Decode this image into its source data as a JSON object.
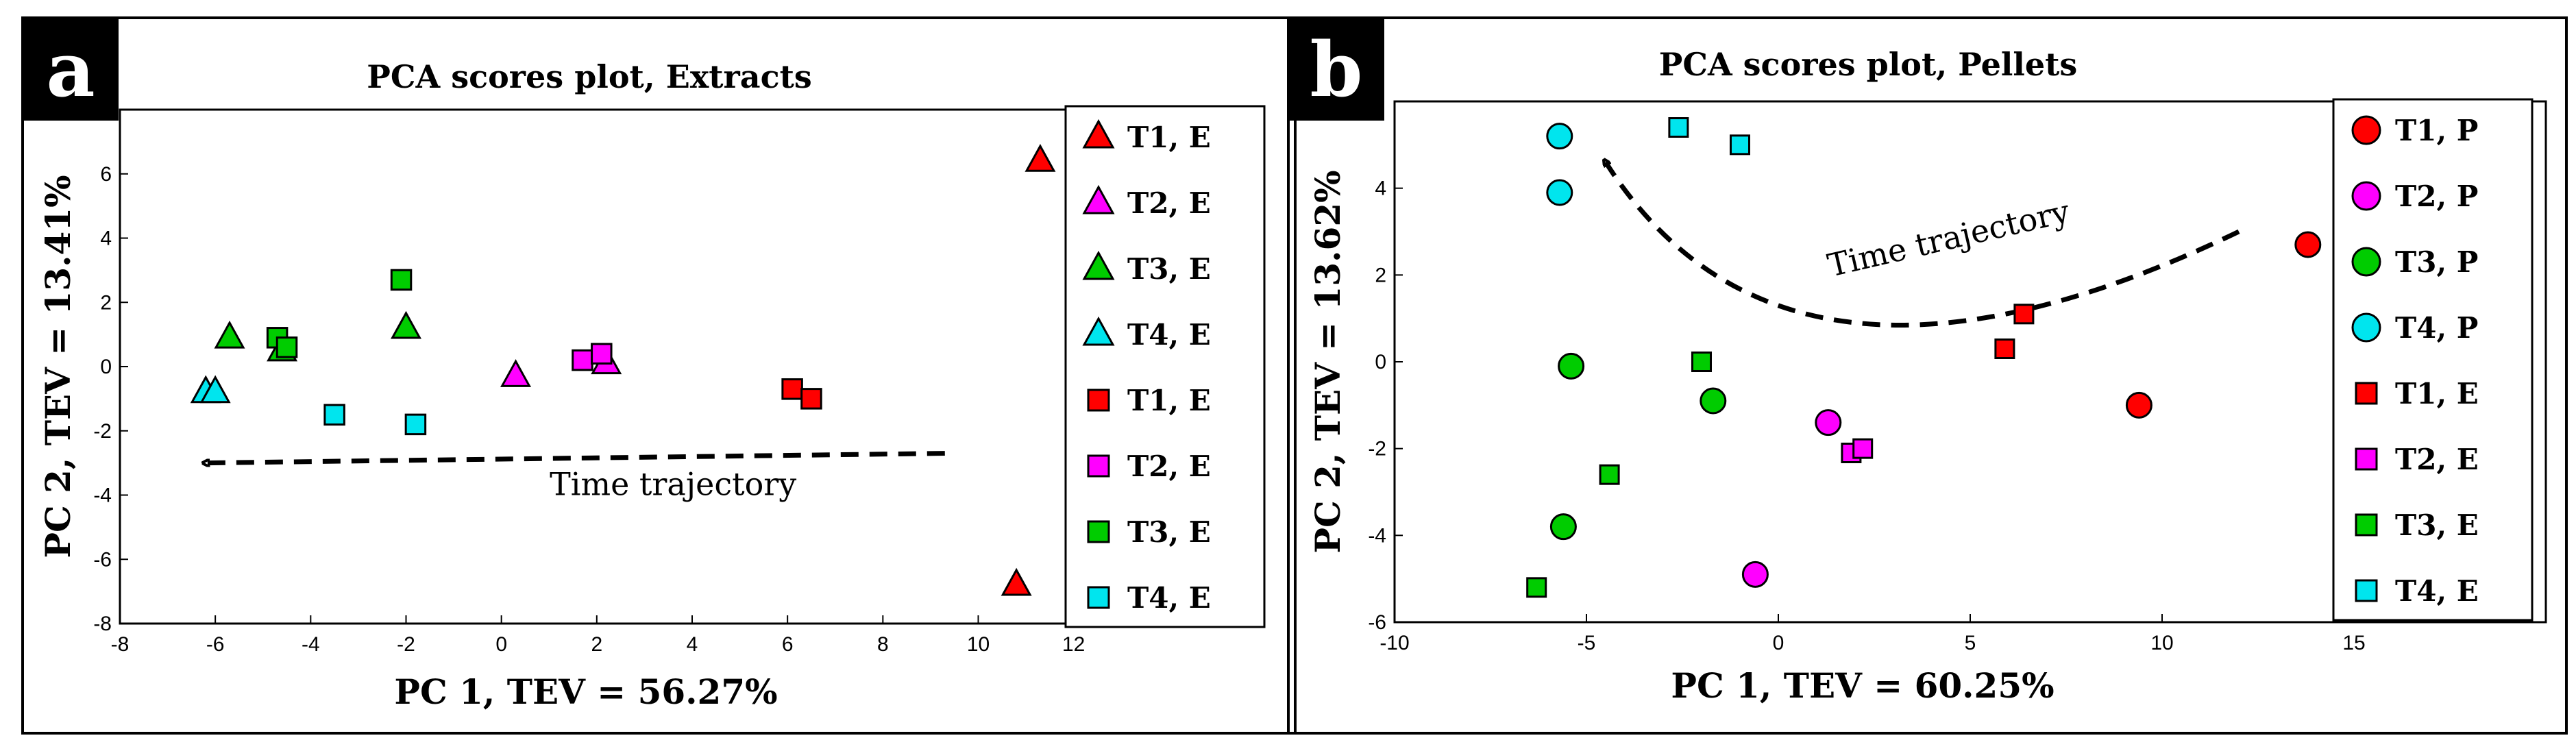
{
  "chart_data": [
    {
      "type": "scatter",
      "panel_label": "a",
      "title": "PCA scores plot, Extracts",
      "xlabel": "PC 1, TEV = 56.27%",
      "ylabel": "PC 2,  TEV = 13.41%",
      "xlim": [
        -8,
        16
      ],
      "ylim": [
        -8,
        8
      ],
      "xticks": [
        -8,
        -6,
        -4,
        -2,
        0,
        2,
        4,
        6,
        8,
        10,
        12
      ],
      "yticks": [
        -8,
        -6,
        -4,
        -2,
        0,
        2,
        4,
        6
      ],
      "grid": false,
      "legend_position": "right",
      "series": [
        {
          "name": "T1, E",
          "marker": "triangle",
          "color": "#ff0000",
          "points": [
            [
              11.3,
              6.4
            ],
            [
              10.8,
              -6.8
            ]
          ]
        },
        {
          "name": "T2, E",
          "marker": "triangle",
          "color": "#ff00ff",
          "points": [
            [
              0.3,
              -0.3
            ],
            [
              2.2,
              0.1
            ]
          ]
        },
        {
          "name": "T3, E",
          "marker": "triangle",
          "color": "#00cc00",
          "points": [
            [
              -5.7,
              0.9
            ],
            [
              -2.0,
              1.2
            ],
            [
              -4.6,
              0.5
            ]
          ]
        },
        {
          "name": "T4, E",
          "marker": "triangle",
          "color": "#00e5ee",
          "points": [
            [
              -6.2,
              -0.8
            ],
            [
              -6.0,
              -0.8
            ]
          ]
        },
        {
          "name": "T1, E",
          "marker": "square",
          "color": "#ff0000",
          "points": [
            [
              6.1,
              -0.7
            ],
            [
              6.5,
              -1.0
            ]
          ]
        },
        {
          "name": "T2, E",
          "marker": "square",
          "color": "#ff00ff",
          "points": [
            [
              1.7,
              0.2
            ],
            [
              2.1,
              0.4
            ]
          ]
        },
        {
          "name": "T3, E",
          "marker": "square",
          "color": "#00cc00",
          "points": [
            [
              -2.1,
              2.7
            ],
            [
              -4.7,
              0.9
            ],
            [
              -4.5,
              0.6
            ]
          ]
        },
        {
          "name": "T4, E",
          "marker": "square",
          "color": "#00e5ee",
          "points": [
            [
              -3.5,
              -1.5
            ],
            [
              -1.8,
              -1.8
            ]
          ]
        }
      ],
      "annotations": [
        {
          "text": "Time trajectory",
          "x": 3.6,
          "y": -4.0
        },
        {
          "type": "arrow",
          "style": "dashed",
          "from": [
            9.3,
            -2.7
          ],
          "to": [
            -6.2,
            -3.0
          ]
        }
      ]
    },
    {
      "type": "scatter",
      "panel_label": "b",
      "title": "PCA scores plot, Pellets",
      "xlabel": "PC 1, TEV = 60.25%",
      "ylabel": "PC 2,  TEV = 13.62%",
      "xlim": [
        -10,
        20
      ],
      "ylim": [
        -6,
        6
      ],
      "xticks": [
        -10,
        -5,
        0,
        5,
        10,
        15
      ],
      "yticks": [
        -6,
        -4,
        -2,
        0,
        2,
        4
      ],
      "grid": false,
      "legend_position": "right",
      "series": [
        {
          "name": "T1, P",
          "marker": "circle",
          "color": "#ff0000",
          "points": [
            [
              13.8,
              2.7
            ],
            [
              9.4,
              -1.0
            ]
          ]
        },
        {
          "name": "T2, P",
          "marker": "circle",
          "color": "#ff00ff",
          "points": [
            [
              1.3,
              -1.4
            ],
            [
              -0.6,
              -4.9
            ]
          ]
        },
        {
          "name": "T3, P",
          "marker": "circle",
          "color": "#00cc00",
          "points": [
            [
              -5.4,
              -0.1
            ],
            [
              -1.7,
              -0.9
            ],
            [
              -5.6,
              -3.8
            ]
          ]
        },
        {
          "name": "T4, P",
          "marker": "circle",
          "color": "#00e5ee",
          "points": [
            [
              -5.7,
              5.2
            ],
            [
              -5.7,
              3.9
            ]
          ]
        },
        {
          "name": "T1, E",
          "marker": "square",
          "color": "#ff0000",
          "points": [
            [
              5.9,
              0.3
            ],
            [
              6.4,
              1.1
            ]
          ]
        },
        {
          "name": "T2, E",
          "marker": "square",
          "color": "#ff00ff",
          "points": [
            [
              1.9,
              -2.1
            ],
            [
              2.2,
              -2.0
            ]
          ]
        },
        {
          "name": "T3, E",
          "marker": "square",
          "color": "#00cc00",
          "points": [
            [
              -2.0,
              0.0
            ],
            [
              -4.4,
              -2.6
            ],
            [
              -6.3,
              -5.2
            ]
          ]
        },
        {
          "name": "T4, E",
          "marker": "square",
          "color": "#00e5ee",
          "points": [
            [
              -2.6,
              5.4
            ],
            [
              -1.0,
              5.0
            ]
          ]
        }
      ],
      "annotations": [
        {
          "text": "Time trajectory",
          "x": 4.5,
          "y": 2.6
        },
        {
          "type": "arrow",
          "style": "dashed",
          "from": [
            12.0,
            3.0
          ],
          "to": [
            -4.5,
            4.6
          ],
          "curved": true,
          "via": [
            2.0,
            0.9
          ]
        }
      ]
    }
  ]
}
